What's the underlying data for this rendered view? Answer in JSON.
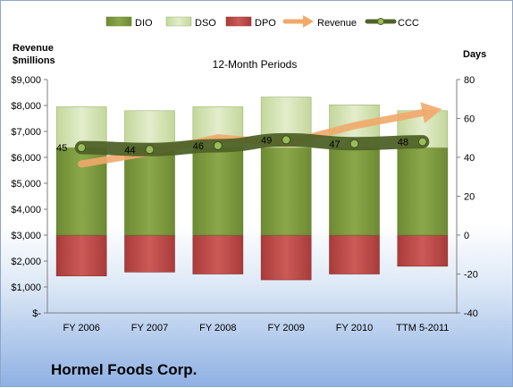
{
  "company": "Hormel Foods Corp.",
  "chart_data": {
    "type": "bar",
    "title": "12-Month Periods",
    "ylabel_left": "Revenue\n$millions",
    "ylabel_right": "Days",
    "categories": [
      "FY 2006",
      "FY 2007",
      "FY 2008",
      "FY 2009",
      "FY 2010",
      "TTM 5-2011"
    ],
    "left_axis": {
      "ylim": [
        0,
        9000
      ],
      "ticks": [
        "$-",
        "$1,000",
        "$2,000",
        "$3,000",
        "$4,000",
        "$5,000",
        "$6,000",
        "$7,000",
        "$8,000",
        "$9,000"
      ]
    },
    "right_axis": {
      "ylim": [
        -40,
        80
      ],
      "ticks": [
        "-40",
        "-20",
        "0",
        "20",
        "40",
        "60",
        "80"
      ]
    },
    "series": [
      {
        "name": "DIO",
        "axis": "right",
        "type": "stacked-bar",
        "values": [
          45,
          45,
          45,
          45,
          45,
          45
        ],
        "color": "#77933c"
      },
      {
        "name": "DSO",
        "axis": "right",
        "type": "stacked-bar",
        "values": [
          21,
          19,
          21,
          26,
          22,
          19
        ],
        "color": "#d7e4bd"
      },
      {
        "name": "DPO",
        "axis": "right",
        "type": "negative-bar",
        "values": [
          -21,
          -19,
          -20,
          -23,
          -20,
          -16
        ],
        "color": "#c0504d"
      },
      {
        "name": "Revenue",
        "axis": "left",
        "type": "line",
        "values": [
          5745,
          6193,
          6755,
          6534,
          7221,
          7720
        ],
        "color": "#f1a96a"
      },
      {
        "name": "CCC",
        "axis": "right",
        "type": "line",
        "values": [
          45,
          44,
          46,
          49,
          47,
          48
        ],
        "labels": [
          "45",
          "44",
          "46",
          "49",
          "47",
          "48"
        ],
        "color": "#4f6228"
      }
    ],
    "legend_position": "top",
    "grid": false
  }
}
